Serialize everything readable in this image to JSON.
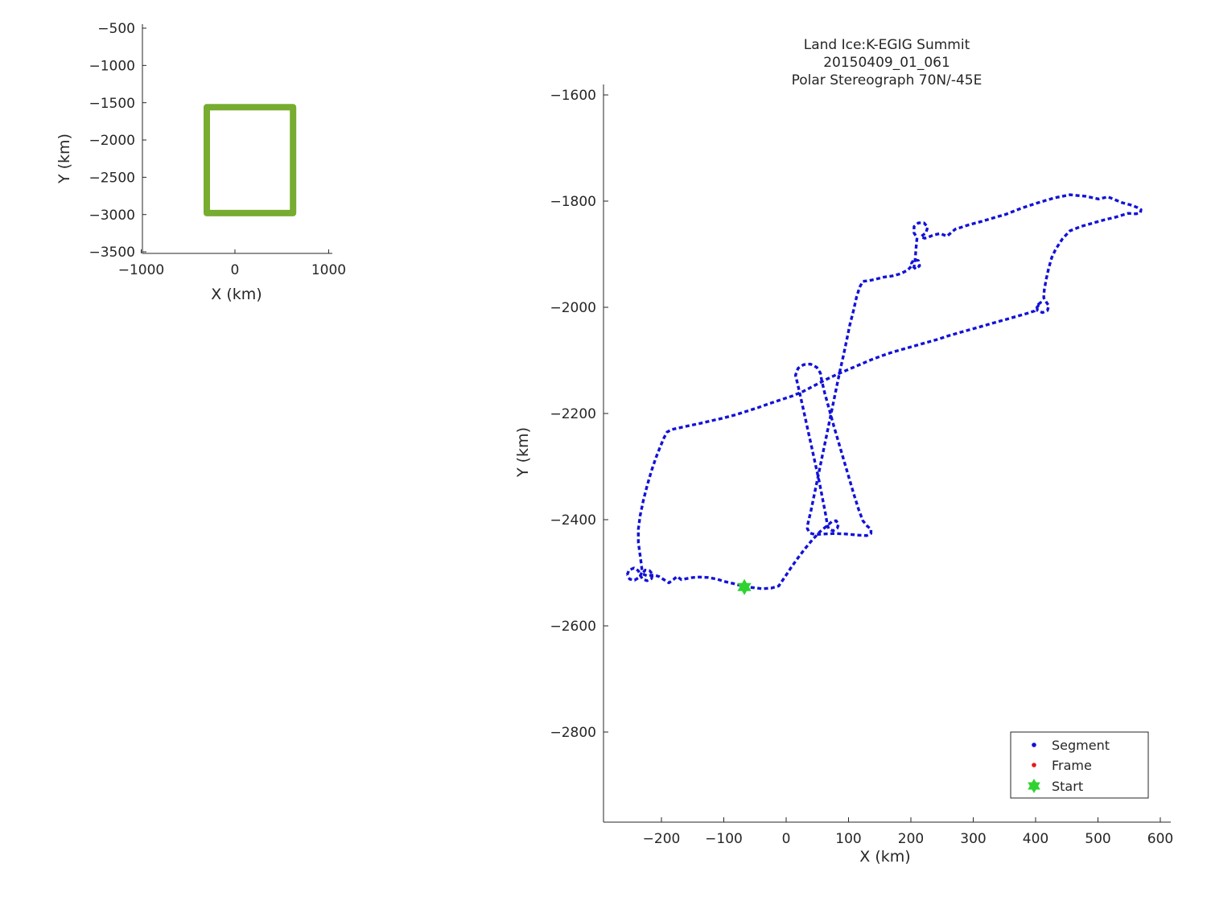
{
  "window": {
    "background": "#ffffff"
  },
  "colors": {
    "segment_blue": "#1212d8",
    "frame_red": "#e81717",
    "start_green": "#2fd32f",
    "extent_green": "#77ac30",
    "axis": "#262626"
  },
  "chart_data": [
    {
      "type": "line",
      "role": "overview-inset",
      "title": "",
      "xlabel": "X (km)",
      "ylabel": "Y (km)",
      "xticks": [
        -1000,
        0,
        1000
      ],
      "yticks": [
        -500,
        -1000,
        -1500,
        -2000,
        -2500,
        -3000,
        -3500
      ],
      "xlim": [
        -987,
        1039
      ],
      "ylim": [
        -3521,
        -446
      ],
      "grid": false,
      "series": [
        {
          "name": "flight-extent-box",
          "color": "#77ac30",
          "line_width": 8,
          "closed": true,
          "points": [
            [
              -300,
              -1560
            ],
            [
              620,
              -1560
            ],
            [
              620,
              -2980
            ],
            [
              -300,
              -2980
            ]
          ]
        }
      ]
    },
    {
      "type": "line",
      "role": "main-plot",
      "title_lines": [
        "Land Ice:K-EGIG Summit",
        "20150409_01_061",
        "Polar Stereograph 70N/-45E"
      ],
      "xlabel": "X (km)",
      "ylabel": "Y (km)",
      "xticks": [
        -200,
        -100,
        0,
        100,
        200,
        300,
        400,
        500,
        600
      ],
      "yticks": [
        -1600,
        -1800,
        -2000,
        -2200,
        -2400,
        -2600,
        -2800
      ],
      "xlim": [
        -292.9,
        616.8
      ],
      "ylim": [
        -2969.7,
        -1580.3
      ],
      "grid": false,
      "legend": [
        {
          "label": "Segment",
          "marker": "dot",
          "color": "#1212d8"
        },
        {
          "label": "Frame",
          "marker": "dot",
          "color": "#e81717"
        },
        {
          "label": "Start",
          "marker": "hexagram",
          "color": "#2fd32f"
        }
      ],
      "start_marker": {
        "shape": "hexagram",
        "color": "#2fd32f",
        "x": -67,
        "y": -2527
      },
      "series": [
        {
          "name": "segment-path",
          "color": "#1212d8",
          "style": "dotted",
          "line_width": 3.4,
          "points": [
            [
              -255,
              -2504
            ],
            [
              -252,
              -2495
            ],
            [
              -244,
              -2491
            ],
            [
              -237,
              -2496
            ],
            [
              -234,
              -2505
            ],
            [
              -230,
              -2512
            ],
            [
              -223,
              -2515
            ],
            [
              -216,
              -2511
            ],
            [
              -214,
              -2503
            ],
            [
              -219,
              -2496
            ],
            [
              -226,
              -2495
            ],
            [
              -231,
              -2502
            ],
            [
              -222,
              -2506
            ],
            [
              -213,
              -2504
            ],
            [
              -204,
              -2507
            ],
            [
              -196,
              -2513
            ],
            [
              -188,
              -2519
            ],
            [
              -181,
              -2513
            ],
            [
              -175,
              -2507
            ],
            [
              -168,
              -2513
            ],
            [
              -160,
              -2511
            ],
            [
              -150,
              -2509
            ],
            [
              -138,
              -2508
            ],
            [
              -125,
              -2509
            ],
            [
              -111,
              -2512
            ],
            [
              -97,
              -2517
            ],
            [
              -82,
              -2521
            ],
            [
              -67,
              -2526
            ],
            [
              -53,
              -2528
            ],
            [
              -38,
              -2530
            ],
            [
              -24,
              -2529
            ],
            [
              -12,
              -2525
            ],
            [
              -2,
              -2508
            ],
            [
              8,
              -2490
            ],
            [
              19,
              -2472
            ],
            [
              30,
              -2455
            ],
            [
              42,
              -2438
            ],
            [
              54,
              -2423
            ],
            [
              65,
              -2412
            ],
            [
              73,
              -2404
            ],
            [
              80,
              -2402
            ],
            [
              84,
              -2408
            ],
            [
              82,
              -2416
            ],
            [
              75,
              -2421
            ],
            [
              68,
              -2417
            ],
            [
              66,
              -2409
            ],
            [
              63,
              -2388
            ],
            [
              58,
              -2358
            ],
            [
              53,
              -2328
            ],
            [
              47,
              -2296
            ],
            [
              41,
              -2264
            ],
            [
              35,
              -2232
            ],
            [
              29,
              -2200
            ],
            [
              23,
              -2168
            ],
            [
              18,
              -2142
            ],
            [
              15,
              -2128
            ],
            [
              19,
              -2115
            ],
            [
              28,
              -2108
            ],
            [
              39,
              -2107
            ],
            [
              49,
              -2113
            ],
            [
              55,
              -2124
            ],
            [
              57,
              -2138
            ],
            [
              62,
              -2162
            ],
            [
              69,
              -2192
            ],
            [
              76,
              -2222
            ],
            [
              84,
              -2254
            ],
            [
              92,
              -2286
            ],
            [
              100,
              -2318
            ],
            [
              108,
              -2350
            ],
            [
              116,
              -2380
            ],
            [
              123,
              -2402
            ],
            [
              130,
              -2412
            ],
            [
              136,
              -2418
            ],
            [
              136,
              -2426
            ],
            [
              129,
              -2430
            ],
            [
              113,
              -2429
            ],
            [
              96,
              -2427
            ],
            [
              78,
              -2426
            ],
            [
              61,
              -2427
            ],
            [
              46,
              -2428
            ],
            [
              38,
              -2425
            ],
            [
              34,
              -2417
            ],
            [
              35,
              -2407
            ],
            [
              40,
              -2382
            ],
            [
              46,
              -2348
            ],
            [
              52,
              -2314
            ],
            [
              58,
              -2280
            ],
            [
              64,
              -2246
            ],
            [
              70,
              -2212
            ],
            [
              76,
              -2178
            ],
            [
              82,
              -2144
            ],
            [
              87,
              -2116
            ],
            [
              92,
              -2090
            ],
            [
              97,
              -2062
            ],
            [
              102,
              -2034
            ],
            [
              108,
              -2006
            ],
            [
              113,
              -1980
            ],
            [
              118,
              -1962
            ],
            [
              123,
              -1951
            ],
            [
              132,
              -1950
            ],
            [
              144,
              -1947
            ],
            [
              157,
              -1943
            ],
            [
              170,
              -1941
            ],
            [
              183,
              -1937
            ],
            [
              195,
              -1930
            ],
            [
              202,
              -1921
            ],
            [
              208,
              -1928
            ],
            [
              214,
              -1922
            ],
            [
              212,
              -1912
            ],
            [
              205,
              -1910
            ],
            [
              201,
              -1917
            ],
            [
              205,
              -1925
            ],
            [
              207,
              -1908
            ],
            [
              208,
              -1893
            ],
            [
              209,
              -1878
            ],
            [
              210,
              -1869
            ],
            [
              205,
              -1860
            ],
            [
              205,
              -1848
            ],
            [
              212,
              -1841
            ],
            [
              221,
              -1841
            ],
            [
              227,
              -1849
            ],
            [
              224,
              -1860
            ],
            [
              216,
              -1867
            ],
            [
              222,
              -1870
            ],
            [
              228,
              -1868
            ],
            [
              236,
              -1864
            ],
            [
              247,
              -1861
            ],
            [
              258,
              -1866
            ],
            [
              271,
              -1853
            ],
            [
              292,
              -1845
            ],
            [
              314,
              -1838
            ],
            [
              334,
              -1831
            ],
            [
              352,
              -1825
            ],
            [
              378,
              -1813
            ],
            [
              404,
              -1803
            ],
            [
              430,
              -1794
            ],
            [
              455,
              -1788
            ],
            [
              481,
              -1791
            ],
            [
              501,
              -1796
            ],
            [
              516,
              -1792
            ],
            [
              539,
              -1803
            ],
            [
              555,
              -1808
            ],
            [
              563,
              -1812
            ],
            [
              569,
              -1816
            ],
            [
              568,
              -1822
            ],
            [
              561,
              -1824
            ],
            [
              548,
              -1823
            ],
            [
              529,
              -1830
            ],
            [
              511,
              -1835
            ],
            [
              490,
              -1842
            ],
            [
              472,
              -1848
            ],
            [
              455,
              -1856
            ],
            [
              443,
              -1871
            ],
            [
              432,
              -1891
            ],
            [
              426,
              -1906
            ],
            [
              421,
              -1926
            ],
            [
              417,
              -1947
            ],
            [
              414,
              -1967
            ],
            [
              413,
              -1982
            ],
            [
              417,
              -1990
            ],
            [
              421,
              -1997
            ],
            [
              419,
              -2006
            ],
            [
              411,
              -2010
            ],
            [
              403,
              -2006
            ],
            [
              402,
              -1997
            ],
            [
              408,
              -1991
            ],
            [
              398,
              -2007
            ],
            [
              385,
              -2012
            ],
            [
              370,
              -2017
            ],
            [
              352,
              -2023
            ],
            [
              334,
              -2029
            ],
            [
              316,
              -2035
            ],
            [
              298,
              -2041
            ],
            [
              280,
              -2047
            ],
            [
              262,
              -2053
            ],
            [
              244,
              -2060
            ],
            [
              226,
              -2066
            ],
            [
              208,
              -2072
            ],
            [
              190,
              -2078
            ],
            [
              172,
              -2084
            ],
            [
              154,
              -2091
            ],
            [
              136,
              -2099
            ],
            [
              118,
              -2108
            ],
            [
              100,
              -2117
            ],
            [
              82,
              -2126
            ],
            [
              64,
              -2136
            ],
            [
              46,
              -2147
            ],
            [
              28,
              -2158
            ],
            [
              10,
              -2167
            ],
            [
              -8,
              -2174
            ],
            [
              -26,
              -2181
            ],
            [
              -45,
              -2189
            ],
            [
              -64,
              -2196
            ],
            [
              -83,
              -2203
            ],
            [
              -102,
              -2209
            ],
            [
              -121,
              -2214
            ],
            [
              -139,
              -2219
            ],
            [
              -156,
              -2223
            ],
            [
              -171,
              -2227
            ],
            [
              -183,
              -2230
            ],
            [
              -191,
              -2235
            ],
            [
              -196,
              -2246
            ],
            [
              -202,
              -2263
            ],
            [
              -209,
              -2284
            ],
            [
              -216,
              -2308
            ],
            [
              -223,
              -2336
            ],
            [
              -229,
              -2364
            ],
            [
              -234,
              -2392
            ],
            [
              -237,
              -2418
            ],
            [
              -237,
              -2443
            ],
            [
              -234,
              -2468
            ],
            [
              -232,
              -2486
            ],
            [
              -231,
              -2498
            ],
            [
              -235,
              -2508
            ],
            [
              -243,
              -2514
            ],
            [
              -251,
              -2512
            ],
            [
              -255,
              -2504
            ]
          ]
        }
      ]
    }
  ]
}
